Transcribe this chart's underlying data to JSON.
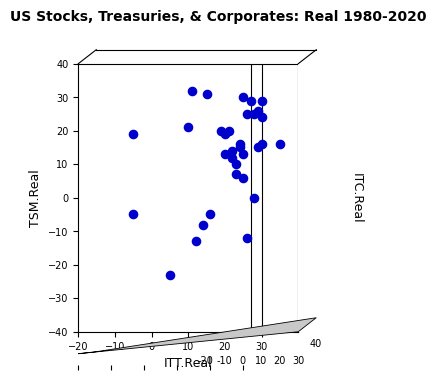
{
  "title": "US Stocks, Treasuries, & Corporates: Real 1980-2020",
  "xlabel": "ITT.Real",
  "ylabel": "TSM.Real",
  "zlabel": "ITC.Real",
  "xlim": [
    -20,
    40
  ],
  "ylim": [
    -40,
    40
  ],
  "x_ticks": [
    -20,
    -10,
    0,
    10,
    20,
    30
  ],
  "y_ticks": [
    -40,
    -30,
    -20,
    -10,
    0,
    10,
    20,
    30,
    40
  ],
  "z_ticks": [
    -20,
    -10,
    0,
    10,
    20,
    30
  ],
  "dot_color": "#0000CC",
  "dot_size": 35,
  "points_ITT": [
    -5,
    -5,
    10,
    11,
    12,
    14,
    16,
    19,
    20,
    20,
    21,
    22,
    22,
    23,
    23,
    24,
    24,
    25,
    25,
    25,
    26,
    26,
    27,
    28,
    28,
    29,
    29,
    30,
    30,
    5,
    15,
    30,
    35
  ],
  "points_TSM": [
    19,
    -5,
    21,
    32,
    -13,
    -8,
    -5,
    20,
    13,
    19,
    20,
    12,
    14,
    7,
    10,
    15,
    16,
    6,
    13,
    30,
    25,
    -12,
    29,
    0,
    25,
    26,
    15,
    24,
    29,
    -23,
    31,
    16,
    16
  ],
  "vline1_x": 27,
  "vline2_x": 30,
  "background_color": "#ffffff",
  "title_fontsize": 10,
  "axis_fontsize": 9,
  "tick_fontsize": 7
}
